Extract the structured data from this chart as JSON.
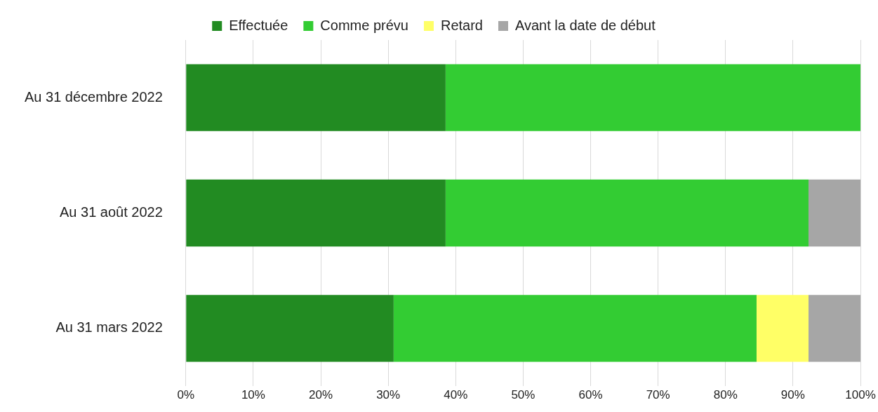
{
  "chart_data": {
    "type": "bar",
    "orientation": "horizontal",
    "stacked": true,
    "legend": "top",
    "grid": "x",
    "categories": [
      "Au 31 décembre 2022",
      "Au 31 août 2022",
      "Au 31 mars 2022"
    ],
    "series": [
      {
        "name": "Effectuée",
        "color": "#228b22",
        "values": [
          38.5,
          38.5,
          30.8
        ]
      },
      {
        "name": "Comme prévu",
        "color": "#33cc33",
        "values": [
          61.5,
          53.8,
          53.8
        ]
      },
      {
        "name": "Retard",
        "color": "#ffff66",
        "values": [
          0,
          0,
          7.7
        ]
      },
      {
        "name": "Avant la date de début",
        "color": "#a6a6a6",
        "values": [
          0,
          7.7,
          7.7
        ]
      }
    ],
    "xlim": [
      0,
      100
    ],
    "xticks": [
      {
        "value": 0,
        "label": "0%"
      },
      {
        "value": 10,
        "label": "10%"
      },
      {
        "value": 20,
        "label": "20%"
      },
      {
        "value": 30,
        "label": "30%"
      },
      {
        "value": 40,
        "label": "40%"
      },
      {
        "value": 50,
        "label": "50%"
      },
      {
        "value": 60,
        "label": "60%"
      },
      {
        "value": 70,
        "label": "70%"
      },
      {
        "value": 80,
        "label": "80%"
      },
      {
        "value": 90,
        "label": "90%"
      },
      {
        "value": 100,
        "label": "100%"
      }
    ]
  }
}
